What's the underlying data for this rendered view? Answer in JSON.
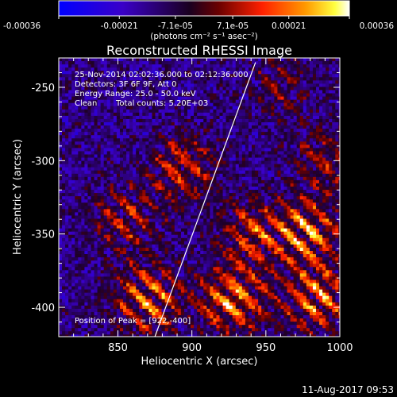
{
  "chart_data": {
    "type": "heatmap",
    "title": "Reconstructed RHESSI Image",
    "xlabel": "Heliocentric X (arcsec)",
    "ylabel": "Heliocentric Y (arcsec)",
    "xlim": [
      810,
      1000
    ],
    "ylim": [
      -420,
      -230
    ],
    "x_ticks": [
      "850",
      "900",
      "950",
      "1000"
    ],
    "y_ticks": [
      "-250",
      "-300",
      "-350",
      "-400"
    ],
    "x_tick_values": [
      850,
      900,
      950,
      1000
    ],
    "y_tick_values": [
      -250,
      -300,
      -350,
      -400
    ],
    "colorbar": {
      "vmin": -0.00036,
      "vmax": 0.00036,
      "ticks": [
        "-0.00036",
        "-0.00021",
        "-7.1e-05",
        "7.1e-05",
        "0.00021",
        "0.00036"
      ],
      "tick_values": [
        -0.00036,
        -0.00021,
        -7.1e-05,
        7.1e-05,
        0.00021,
        0.00036
      ],
      "unit_label": "(photons cm⁻² s⁻¹ asec⁻²)",
      "colors": [
        "#0000ff",
        "#000000",
        "#ff0000",
        "#ffff00",
        "#ffffff"
      ]
    },
    "annotations": {
      "time_range": "25-Nov-2014 02:02:36.000 to 02:12:36.000",
      "detectors": "Detectors: 3F 6F 9F, Att 0",
      "energy": "Energy Range: 25.0 - 50.0 keV",
      "method": "Clean",
      "total_counts": "Total counts: 5.20E+03",
      "peak": "Position of Peak = [922,-400]"
    },
    "limb_line": [
      [
        875,
        -420
      ],
      [
        943,
        -233
      ]
    ],
    "peak_position": [
      922,
      -400
    ],
    "bright_regions": [
      {
        "x": 870,
        "y": -395,
        "level": 0.9
      },
      {
        "x": 928,
        "y": -395,
        "level": 1.0
      },
      {
        "x": 985,
        "y": -395,
        "level": 0.85
      },
      {
        "x": 978,
        "y": -350,
        "level": 0.9
      },
      {
        "x": 940,
        "y": -350,
        "level": 0.65
      },
      {
        "x": 895,
        "y": -305,
        "level": 0.7
      },
      {
        "x": 855,
        "y": -340,
        "level": 0.55
      },
      {
        "x": 990,
        "y": -300,
        "level": 0.5
      },
      {
        "x": 960,
        "y": -250,
        "level": 0.35
      }
    ]
  },
  "footer": {
    "timestamp": "11-Aug-2017 09:53"
  }
}
